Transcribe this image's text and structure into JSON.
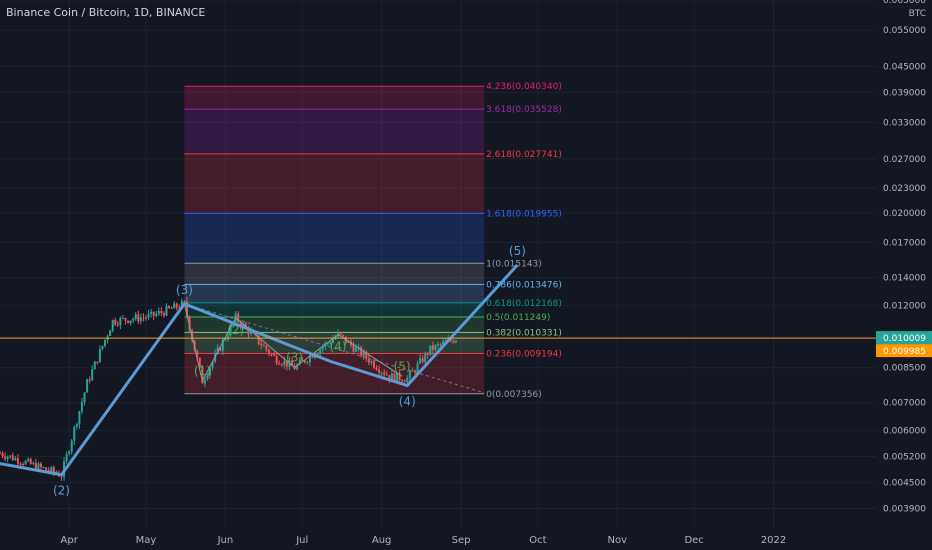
{
  "title": "Binance Coin / Bitcoin, 1D, BINANCE",
  "currency": "BTC",
  "colors": {
    "bg": "#131722",
    "grid": "#1e2230",
    "text": "#b2b5be",
    "up": "#26a69a",
    "down": "#ef5350",
    "wave": "#5b9bd5",
    "price_line": "#f0a23a",
    "last_label_bg": "#26a69a",
    "prev_label_bg": "#ff9800"
  },
  "chart_data": {
    "type": "candlestick",
    "symbol": "Binance Coin / Bitcoin",
    "interval": "1D",
    "exchange": "BINANCE",
    "y_scale": "log",
    "ylim": [
      0.0035,
      0.065
    ],
    "y_ticks": [
      {
        "value": 0.065,
        "label": "0.065000"
      },
      {
        "value": 0.055,
        "label": "0.055000"
      },
      {
        "value": 0.045,
        "label": "0.045000"
      },
      {
        "value": 0.039,
        "label": "0.039000"
      },
      {
        "value": 0.033,
        "label": "0.033000"
      },
      {
        "value": 0.027,
        "label": "0.027000"
      },
      {
        "value": 0.023,
        "label": "0.023000"
      },
      {
        "value": 0.02,
        "label": "0.020000"
      },
      {
        "value": 0.017,
        "label": "0.017000"
      },
      {
        "value": 0.014,
        "label": "0.014000"
      },
      {
        "value": 0.012,
        "label": "0.012000"
      },
      {
        "value": 0.0085,
        "label": "0.008500"
      },
      {
        "value": 0.007,
        "label": "0.007000"
      },
      {
        "value": 0.006,
        "label": "0.006000"
      },
      {
        "value": 0.0052,
        "label": "0.005200"
      },
      {
        "value": 0.0045,
        "label": "0.004500"
      },
      {
        "value": 0.0039,
        "label": "0.003900"
      }
    ],
    "x_range": [
      "2021-03-05",
      "2022-02-10"
    ],
    "x_ticks": [
      {
        "date": "2021-04-01",
        "label": "Apr"
      },
      {
        "date": "2021-05-01",
        "label": "May"
      },
      {
        "date": "2021-06-01",
        "label": "Jun"
      },
      {
        "date": "2021-07-01",
        "label": "Jul"
      },
      {
        "date": "2021-08-01",
        "label": "Aug"
      },
      {
        "date": "2021-09-01",
        "label": "Sep"
      },
      {
        "date": "2021-10-01",
        "label": "Oct"
      },
      {
        "date": "2021-11-01",
        "label": "Nov"
      },
      {
        "date": "2021-12-01",
        "label": "Dec"
      },
      {
        "date": "2022-01-01",
        "label": "2022"
      }
    ],
    "price_path": [
      {
        "date": "2021-03-05",
        "value": 0.0053
      },
      {
        "date": "2021-03-20",
        "value": 0.0049
      },
      {
        "date": "2021-03-29",
        "value": 0.0047
      },
      {
        "date": "2021-04-08",
        "value": 0.0078
      },
      {
        "date": "2021-04-18",
        "value": 0.011
      },
      {
        "date": "2021-05-03",
        "value": 0.0113
      },
      {
        "date": "2021-05-16",
        "value": 0.0121
      },
      {
        "date": "2021-05-20",
        "value": 0.0094
      },
      {
        "date": "2021-05-23",
        "value": 0.0079
      },
      {
        "date": "2021-06-05",
        "value": 0.0112
      },
      {
        "date": "2021-06-20",
        "value": 0.009
      },
      {
        "date": "2021-06-28",
        "value": 0.0085
      },
      {
        "date": "2021-07-15",
        "value": 0.0102
      },
      {
        "date": "2021-08-04",
        "value": 0.0081
      },
      {
        "date": "2021-08-11",
        "value": 0.008
      },
      {
        "date": "2021-08-20",
        "value": 0.0094
      },
      {
        "date": "2021-08-30",
        "value": 0.01
      }
    ],
    "fib_levels": [
      {
        "ratio": "0",
        "value": 0.007356,
        "label": "0(0.007356)",
        "color": "#9598a1"
      },
      {
        "ratio": "0.236",
        "value": 0.009194,
        "label": "0.236(0.009194)",
        "color": "#f23645"
      },
      {
        "ratio": "0.382",
        "value": 0.010331,
        "label": "0.382(0.010331)",
        "color": "#81c784"
      },
      {
        "ratio": "0.5",
        "value": 0.011249,
        "label": "0.5(0.011249)",
        "color": "#4caf50"
      },
      {
        "ratio": "0.618",
        "value": 0.012168,
        "label": "0.618(0.012168)",
        "color": "#089981"
      },
      {
        "ratio": "0.786",
        "value": 0.013476,
        "label": "0.786(0.013476)",
        "color": "#64b5f6"
      },
      {
        "ratio": "1",
        "value": 0.015143,
        "label": "1(0.015143)",
        "color": "#9598a1"
      },
      {
        "ratio": "1.618",
        "value": 0.019955,
        "label": "1.618(0.019955)",
        "color": "#2962ff"
      },
      {
        "ratio": "2.618",
        "value": 0.027741,
        "label": "2.618(0.027741)",
        "color": "#f23645"
      },
      {
        "ratio": "3.618",
        "value": 0.035528,
        "label": "3.618(0.035528)",
        "color": "#9c27b0"
      },
      {
        "ratio": "4.236",
        "value": 0.04034,
        "label": "4.236(0.040340)",
        "color": "#e91e63"
      }
    ],
    "fib_start": "2021-05-16",
    "fib_end": "2021-09-10",
    "main_wave": [
      {
        "date": "2021-03-05",
        "value": 0.005
      },
      {
        "date": "2021-03-29",
        "value": 0.0047,
        "label": "(2)"
      },
      {
        "date": "2021-05-16",
        "value": 0.0121,
        "label": "(3)"
      },
      {
        "date": "2021-07-12",
        "value": 0.0088
      },
      {
        "date": "2021-08-11",
        "value": 0.0077,
        "label": "(4)"
      },
      {
        "date": "2021-09-23",
        "value": 0.015,
        "label": "(5)"
      }
    ],
    "sub_wave": [
      {
        "date": "2021-05-16",
        "value": 0.0121
      },
      {
        "date": "2021-05-23",
        "value": 0.0079,
        "label": "(1)"
      },
      {
        "date": "2021-06-05",
        "value": 0.0112,
        "label": "(2)"
      },
      {
        "date": "2021-06-28",
        "value": 0.0085,
        "label": "(3)"
      },
      {
        "date": "2021-07-15",
        "value": 0.0102,
        "label": "(4)"
      },
      {
        "date": "2021-08-09",
        "value": 0.0081,
        "label": "(5)"
      }
    ],
    "trend_line": [
      {
        "date": "2021-05-16",
        "value": 0.0121
      },
      {
        "date": "2021-09-10",
        "value": 0.0074
      }
    ],
    "last_price": {
      "value": 0.010009,
      "label": "0.010009"
    },
    "prev_price": {
      "value": 0.009985,
      "label": "0.009985"
    }
  }
}
